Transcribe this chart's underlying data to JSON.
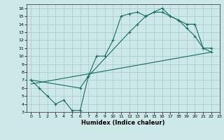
{
  "xlabel": "Humidex (Indice chaleur)",
  "bg_color": "#cce8e8",
  "line_color": "#1a6b60",
  "grid_color": "#aacece",
  "xlim": [
    -0.5,
    23
  ],
  "ylim": [
    3,
    16.5
  ],
  "xticks": [
    0,
    1,
    2,
    3,
    4,
    5,
    6,
    7,
    8,
    9,
    10,
    11,
    12,
    13,
    14,
    15,
    16,
    17,
    18,
    19,
    20,
    21,
    22,
    23
  ],
  "yticks": [
    3,
    4,
    5,
    6,
    7,
    8,
    9,
    10,
    11,
    12,
    13,
    14,
    15,
    16
  ],
  "line1_x": [
    0,
    1,
    2,
    3,
    4,
    5,
    6,
    7,
    8,
    9,
    10,
    11,
    12,
    13,
    14,
    15,
    16,
    17,
    18,
    19,
    20,
    21,
    22
  ],
  "line1_y": [
    7,
    6,
    5,
    4,
    4.5,
    3.2,
    3.2,
    7.5,
    10,
    10,
    12,
    15,
    15.3,
    15.5,
    15,
    15.5,
    16,
    15,
    14.5,
    13.5,
    12.5,
    11,
    11
  ],
  "line2_x": [
    0,
    6,
    7,
    12,
    13,
    14,
    15,
    16,
    17,
    18,
    19,
    20,
    21,
    22
  ],
  "line2_y": [
    7,
    6,
    7.5,
    13,
    14,
    15,
    15.5,
    15.5,
    15,
    14.5,
    14,
    14,
    11,
    10.5
  ],
  "line3_x": [
    0,
    22
  ],
  "line3_y": [
    6.5,
    10.5
  ]
}
